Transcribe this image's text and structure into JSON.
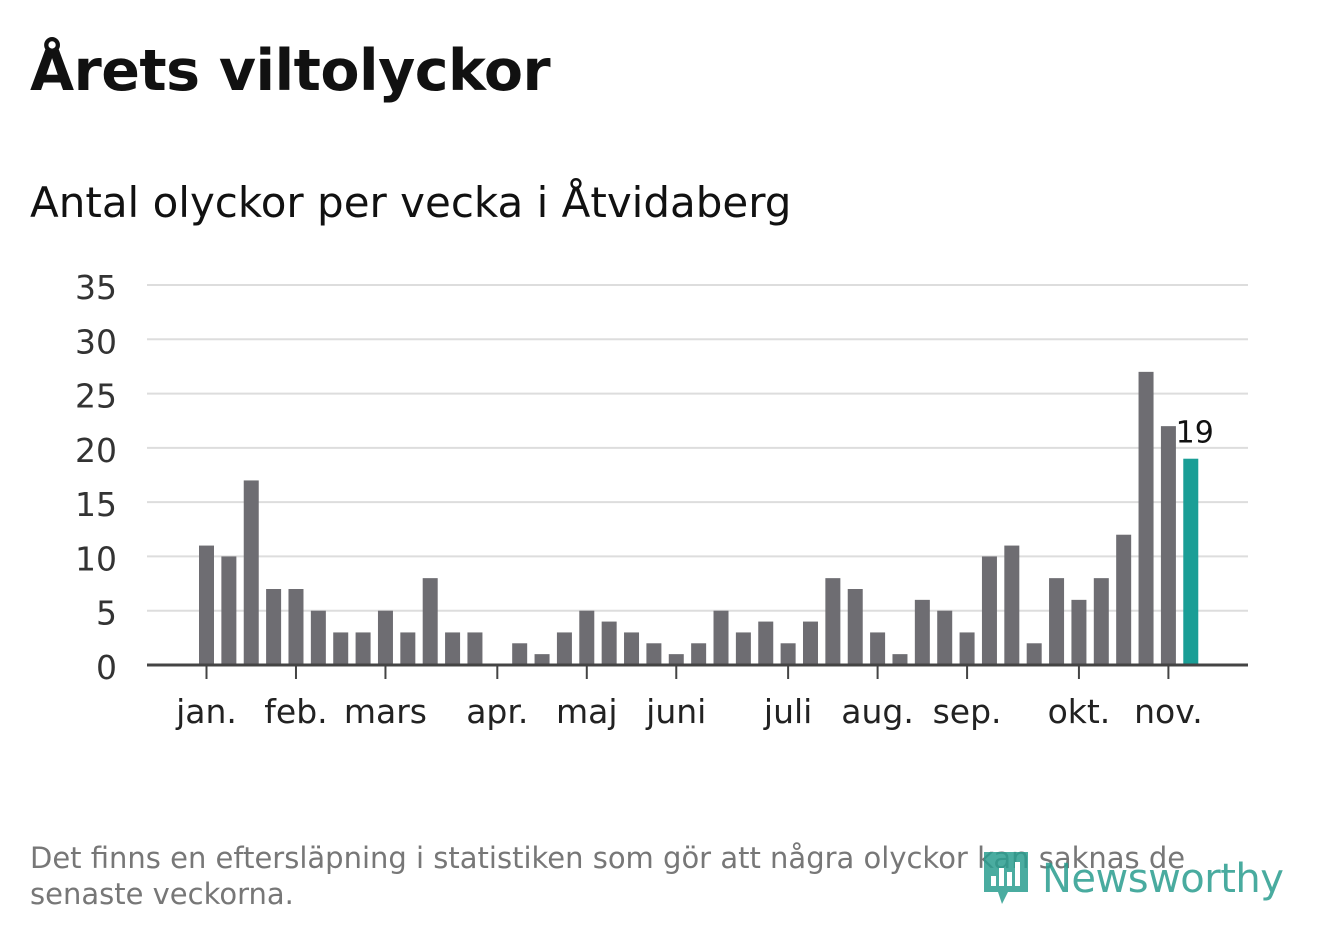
{
  "title": "Årets viltolyckor",
  "subtitle": "Antal olyckor per vecka i Åtvidaberg",
  "note": "Det finns en eftersläpning i statistiken som gör att några olyckor kan saknas de senaste veckorna.",
  "brand": {
    "name": "Newsworthy",
    "icon": "newsworthy-logo-icon"
  },
  "colors": {
    "bar": "#6e6d72",
    "highlight": "#1a9e96",
    "grid": "#dddddd",
    "axis": "#444444"
  },
  "chart_data": {
    "type": "bar",
    "title": "Antal olyckor per vecka i Åtvidaberg",
    "xlabel": "",
    "ylabel": "",
    "ylim": [
      0,
      35
    ],
    "yticks": [
      0,
      5,
      10,
      15,
      20,
      25,
      30,
      35
    ],
    "grid": true,
    "values": [
      11,
      10,
      17,
      7,
      7,
      5,
      3,
      3,
      5,
      3,
      8,
      3,
      3,
      0,
      2,
      1,
      3,
      5,
      4,
      3,
      2,
      1,
      2,
      5,
      3,
      4,
      2,
      4,
      8,
      7,
      3,
      1,
      6,
      5,
      3,
      10,
      11,
      2,
      8,
      6,
      8,
      12,
      27,
      22,
      19
    ],
    "month_labels": [
      {
        "label": "jan.",
        "week_index": 0
      },
      {
        "label": "feb.",
        "week_index": 4
      },
      {
        "label": "mars",
        "week_index": 8
      },
      {
        "label": "apr.",
        "week_index": 13
      },
      {
        "label": "maj",
        "week_index": 17
      },
      {
        "label": "juni",
        "week_index": 21
      },
      {
        "label": "juli",
        "week_index": 26
      },
      {
        "label": "aug.",
        "week_index": 30
      },
      {
        "label": "sep.",
        "week_index": 34
      },
      {
        "label": "okt.",
        "week_index": 39
      },
      {
        "label": "nov.",
        "week_index": 43
      }
    ],
    "highlight_index": 44,
    "highlight_label": "19"
  }
}
